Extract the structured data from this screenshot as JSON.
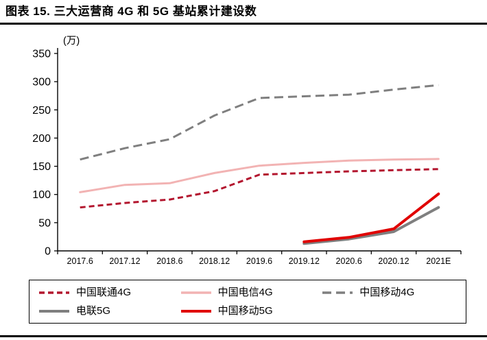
{
  "page": {
    "title": "图表 15. 三大运营商 4G 和 5G 基站累计建设数"
  },
  "chart_data": {
    "type": "line",
    "title": "三大运营商 4G 和 5G 基站累计建设数",
    "unit_label": "(万)",
    "xlabel": "",
    "ylabel": "",
    "ylim": [
      0,
      350
    ],
    "yticks": [
      0,
      50,
      100,
      150,
      200,
      250,
      300,
      350
    ],
    "grid": false,
    "legend_position": "bottom",
    "categories": [
      "2017.6",
      "2017.12",
      "2018.6",
      "2018.12",
      "2019.6",
      "2019.12",
      "2020.6",
      "2020.12",
      "2021E"
    ],
    "series": [
      {
        "name": "中国联通4G",
        "color": "#b3152e",
        "dash": "8 5",
        "width": 3,
        "values": [
          77,
          85,
          91,
          106,
          135,
          138,
          141,
          143,
          145
        ]
      },
      {
        "name": "中国电信4G",
        "color": "#f2b3b3",
        "dash": "",
        "width": 3,
        "values": [
          104,
          117,
          120,
          138,
          151,
          156,
          160,
          162,
          163
        ]
      },
      {
        "name": "中国移动4G",
        "color": "#7f7f7f",
        "dash": "13 7",
        "width": 3,
        "values": [
          162,
          182,
          198,
          240,
          271,
          274,
          277,
          286,
          294
        ]
      },
      {
        "name": "电联5G",
        "color": "#7f7f7f",
        "dash": "",
        "width": 4,
        "values": [
          null,
          null,
          null,
          null,
          null,
          13,
          21,
          34,
          77
        ]
      },
      {
        "name": "中国移动5G",
        "color": "#e00000",
        "dash": "",
        "width": 4,
        "values": [
          null,
          null,
          null,
          null,
          null,
          16,
          24,
          39,
          101
        ]
      }
    ]
  }
}
